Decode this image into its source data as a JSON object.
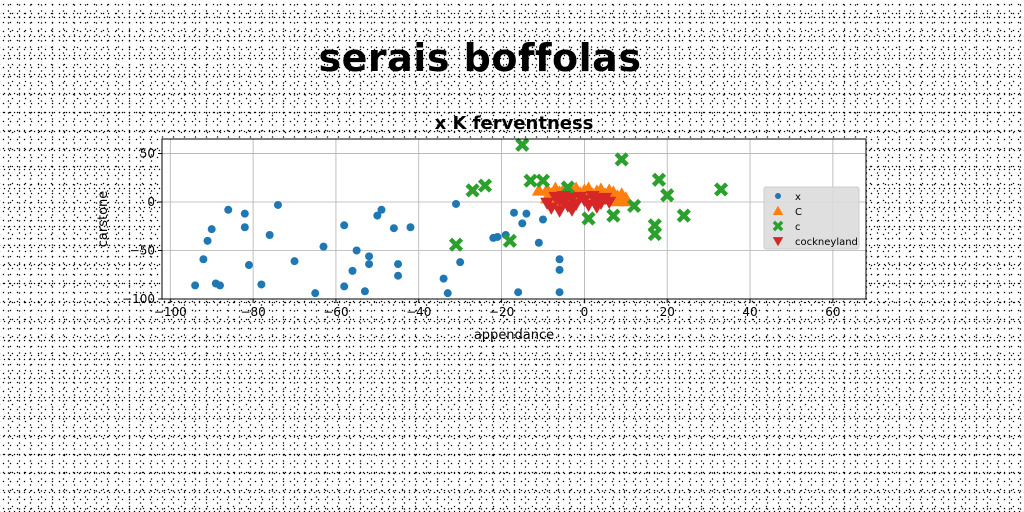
{
  "figure": {
    "suptitle": "serais boffolas"
  },
  "chart_data": {
    "type": "scatter",
    "title": "x K ferventness",
    "xlabel": "appendance",
    "ylabel": "carstone",
    "xlim": [
      -102,
      68
    ],
    "ylim": [
      -100,
      65
    ],
    "xticks": [
      -100,
      -80,
      -60,
      -40,
      -20,
      0,
      20,
      40,
      60
    ],
    "xtick_labels": [
      "−100",
      "−80",
      "−60",
      "−40",
      "−20",
      "0",
      "20",
      "40",
      "60"
    ],
    "yticks": [
      50,
      0,
      -50,
      -100
    ],
    "ytick_labels": [
      "50",
      "0",
      "−50",
      "−100"
    ],
    "grid": true,
    "legend_position": "right",
    "series": [
      {
        "name": "x",
        "marker": "circle",
        "color": "#1f77b4",
        "points": [
          [
            -94,
            -86
          ],
          [
            -92,
            -59
          ],
          [
            -91,
            -40
          ],
          [
            -90,
            -28
          ],
          [
            -89,
            -84
          ],
          [
            -88,
            -86
          ],
          [
            -86,
            -8
          ],
          [
            -82,
            -12
          ],
          [
            -82,
            -26
          ],
          [
            -81,
            -65
          ],
          [
            -78,
            -85
          ],
          [
            -76,
            -34
          ],
          [
            -74,
            -3
          ],
          [
            -70,
            -61
          ],
          [
            -65,
            -94
          ],
          [
            -63,
            -46
          ],
          [
            -58,
            -24
          ],
          [
            -58,
            -87
          ],
          [
            -56,
            -71
          ],
          [
            -55,
            -50
          ],
          [
            -53,
            -92
          ],
          [
            -52,
            -56
          ],
          [
            -52,
            -64
          ],
          [
            -50,
            -14
          ],
          [
            -49,
            -8
          ],
          [
            -46,
            -27
          ],
          [
            -45,
            -64
          ],
          [
            -45,
            -76
          ],
          [
            -42,
            -26
          ],
          [
            -34,
            -79
          ],
          [
            -33,
            -94
          ],
          [
            -31,
            -2
          ],
          [
            -30,
            -62
          ],
          [
            -22,
            -37
          ],
          [
            -21,
            -36
          ],
          [
            -19,
            -34
          ],
          [
            -17,
            -11
          ],
          [
            -16,
            -93
          ],
          [
            -15,
            -22
          ],
          [
            -14,
            -12
          ],
          [
            -11,
            -42
          ],
          [
            -10,
            -18
          ],
          [
            -6,
            -59
          ],
          [
            -6,
            -70
          ],
          [
            -6,
            -93
          ]
        ]
      },
      {
        "name": "C",
        "marker": "triangle-up",
        "color": "#ff7f0e",
        "points": [
          [
            -11,
            12
          ],
          [
            -9,
            13
          ],
          [
            -8,
            8
          ],
          [
            -7,
            14
          ],
          [
            -6,
            10
          ],
          [
            -5,
            13
          ],
          [
            -4,
            8
          ],
          [
            -3,
            12
          ],
          [
            -2,
            14
          ],
          [
            -1,
            9
          ],
          [
            0,
            12
          ],
          [
            1,
            14
          ],
          [
            2,
            8
          ],
          [
            3,
            11
          ],
          [
            4,
            13
          ],
          [
            5,
            8
          ],
          [
            6,
            12
          ],
          [
            7,
            10
          ],
          [
            8,
            6
          ],
          [
            9,
            8
          ],
          [
            10,
            4
          ],
          [
            -9,
            4
          ],
          [
            -7,
            1
          ],
          [
            -5,
            3
          ],
          [
            -3,
            5
          ],
          [
            6,
            3
          ],
          [
            8,
            1
          ],
          [
            10,
            1
          ]
        ]
      },
      {
        "name": "c",
        "marker": "x-thick",
        "color": "#2ca02c",
        "points": [
          [
            -31,
            -44
          ],
          [
            -27,
            12
          ],
          [
            -24,
            17
          ],
          [
            -18,
            -40
          ],
          [
            -15,
            59
          ],
          [
            -13,
            22
          ],
          [
            -10,
            22
          ],
          [
            -4,
            15
          ],
          [
            1,
            -17
          ],
          [
            7,
            -14
          ],
          [
            9,
            44
          ],
          [
            12,
            -4
          ],
          [
            17,
            -24
          ],
          [
            17,
            -33
          ],
          [
            18,
            23
          ],
          [
            20,
            7
          ],
          [
            24,
            -14
          ],
          [
            33,
            13
          ]
        ]
      },
      {
        "name": "cockneyland",
        "marker": "triangle-down",
        "color": "#d62728",
        "points": [
          [
            -9,
            -1
          ],
          [
            -8,
            -6
          ],
          [
            -7,
            5
          ],
          [
            -6,
            -9
          ],
          [
            -5,
            0
          ],
          [
            -5,
            6
          ],
          [
            -4,
            -4
          ],
          [
            -3,
            4
          ],
          [
            -2,
            -2
          ],
          [
            -1,
            5
          ],
          [
            0,
            2
          ],
          [
            1,
            -3
          ],
          [
            2,
            6
          ],
          [
            3,
            3
          ],
          [
            4,
            -1
          ],
          [
            5,
            4
          ],
          [
            6,
            0
          ],
          [
            -3,
            -8
          ],
          [
            -6,
            2
          ],
          [
            3,
            -5
          ]
        ]
      }
    ]
  }
}
